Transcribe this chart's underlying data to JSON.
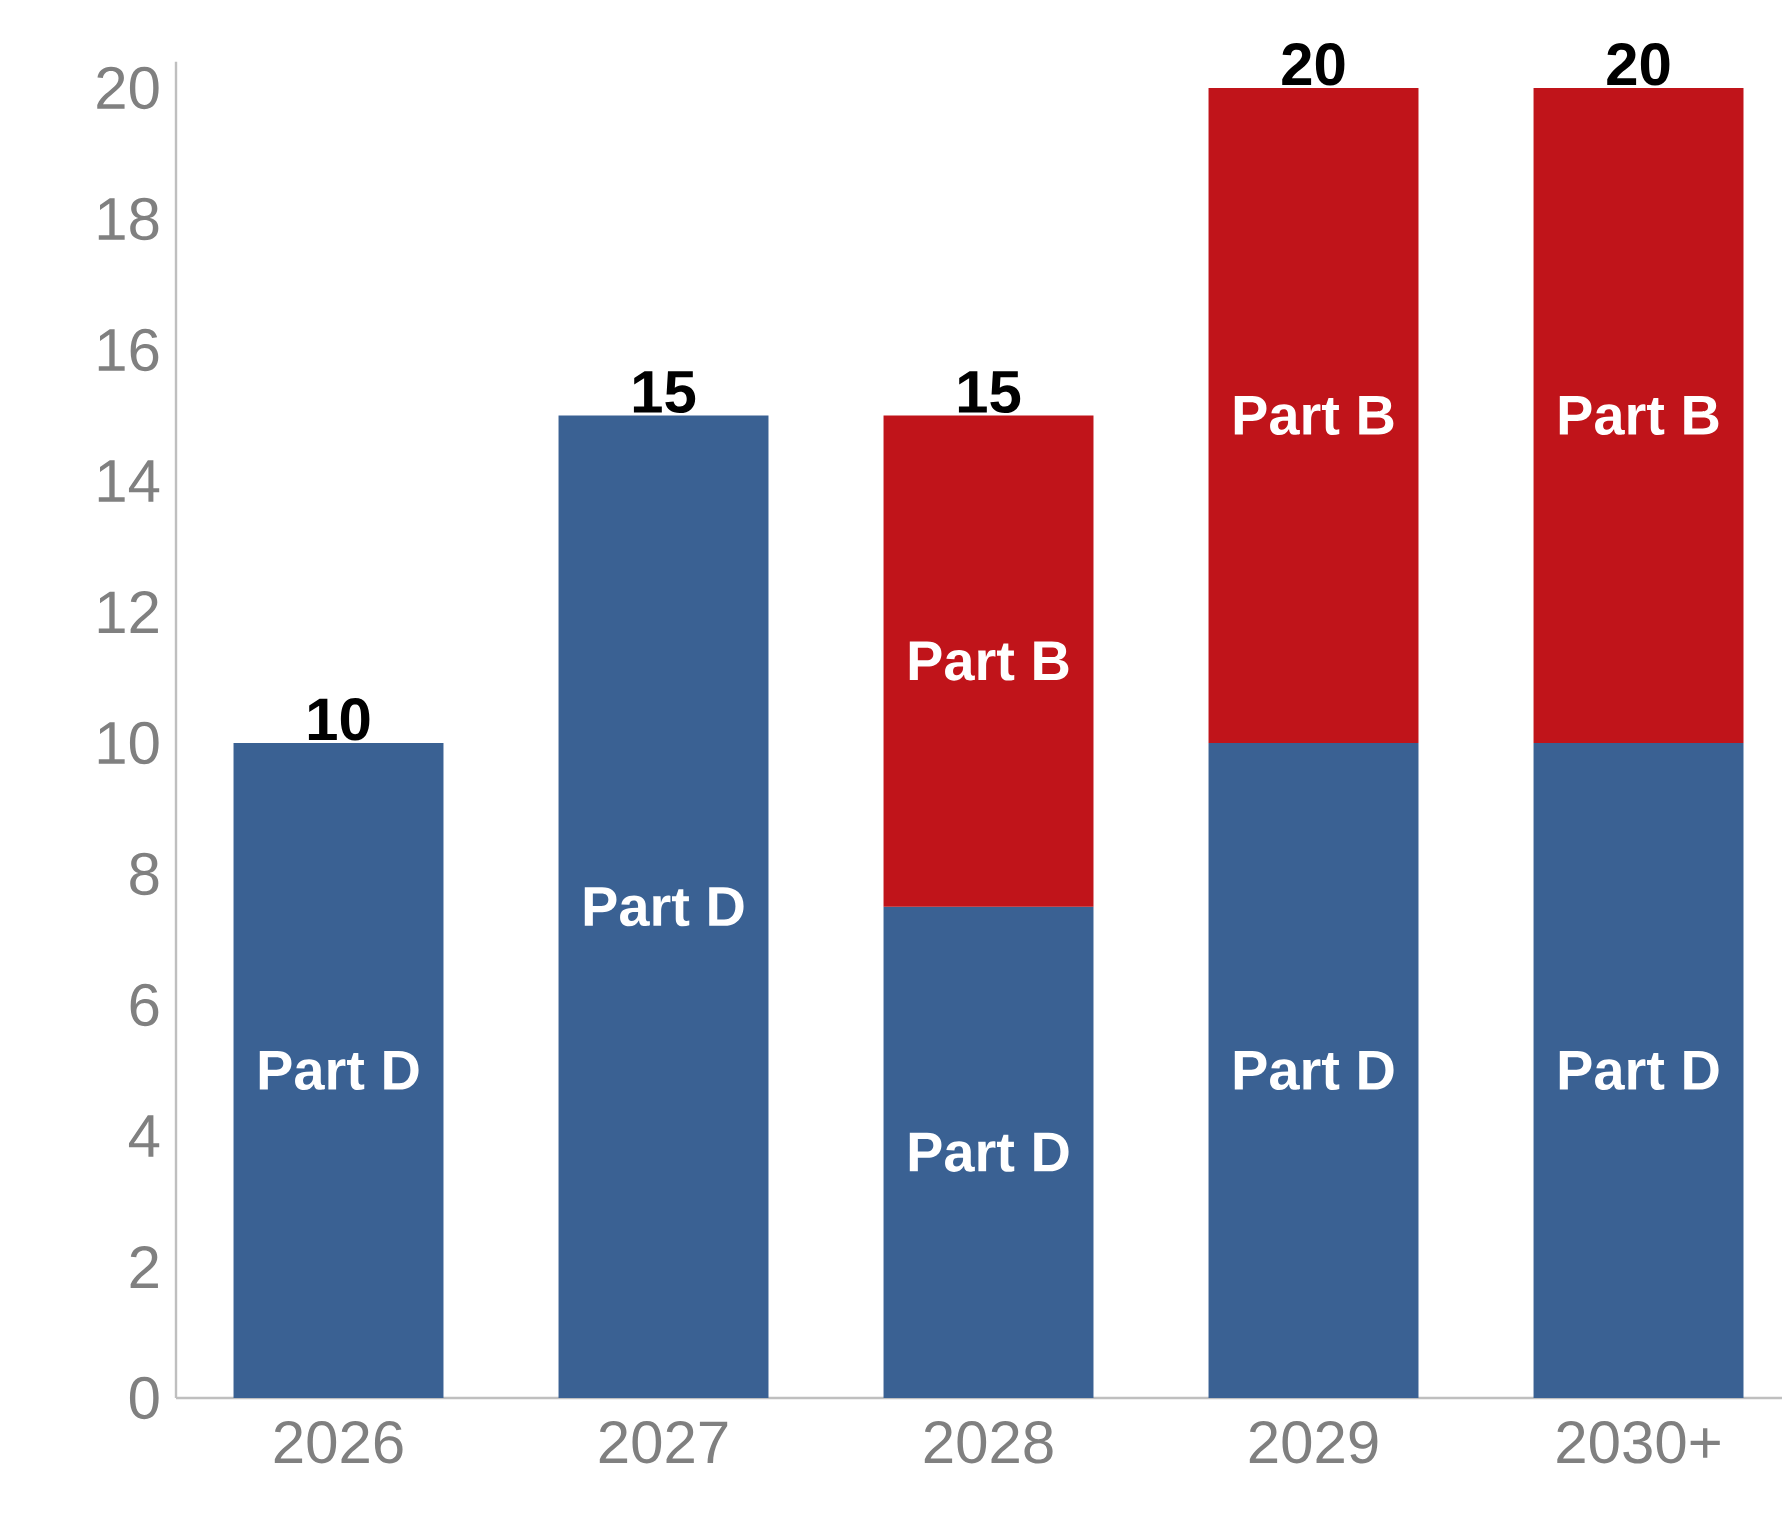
{
  "chart_data": {
    "type": "bar",
    "stacked": true,
    "categories": [
      "2026",
      "2027",
      "2028",
      "2029",
      "2030+"
    ],
    "series": [
      {
        "name": "Part D",
        "color": "#3a6193",
        "values": [
          10,
          15,
          7.5,
          10,
          10
        ]
      },
      {
        "name": "Part B",
        "color": "#c0141a",
        "values": [
          null,
          null,
          7.5,
          10,
          10
        ]
      }
    ],
    "totals": [
      "10",
      "15",
      "15",
      "20",
      "20"
    ],
    "ylim": [
      0,
      20.4
    ],
    "yticks": [
      0,
      2,
      4,
      6,
      8,
      10,
      12,
      14,
      16,
      18,
      20
    ],
    "grid": false
  }
}
